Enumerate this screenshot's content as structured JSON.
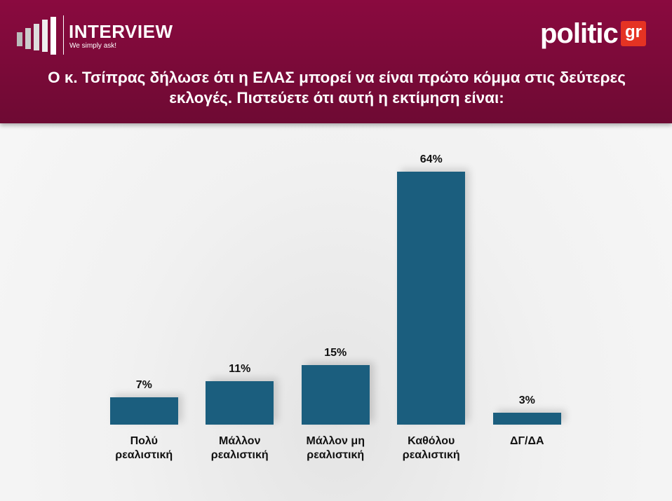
{
  "header": {
    "brand": "INTERVIEW",
    "tagline": "We simply ask!",
    "logo": "politic",
    "logo_suffix": "gr"
  },
  "chart_data": {
    "type": "bar",
    "title": "Ο κ. Τσίπρας δήλωσε ότι η ΕΛΑΣ μπορεί να είναι πρώτο κόμμα στις δεύτερες εκλογές. Πιστεύετε ότι αυτή η εκτίμηση είναι:",
    "categories": [
      "Πολύ ρεαλιστική",
      "Μάλλον ρεαλιστική",
      "Μάλλον μη ρεαλιστική",
      "Καθόλου ρεαλιστική",
      "ΔΓ/ΔΑ"
    ],
    "values": [
      7,
      11,
      15,
      64,
      3
    ],
    "value_labels": [
      "7%",
      "11%",
      "15%",
      "64%",
      "3%"
    ],
    "color": "#1b5e7e"
  }
}
